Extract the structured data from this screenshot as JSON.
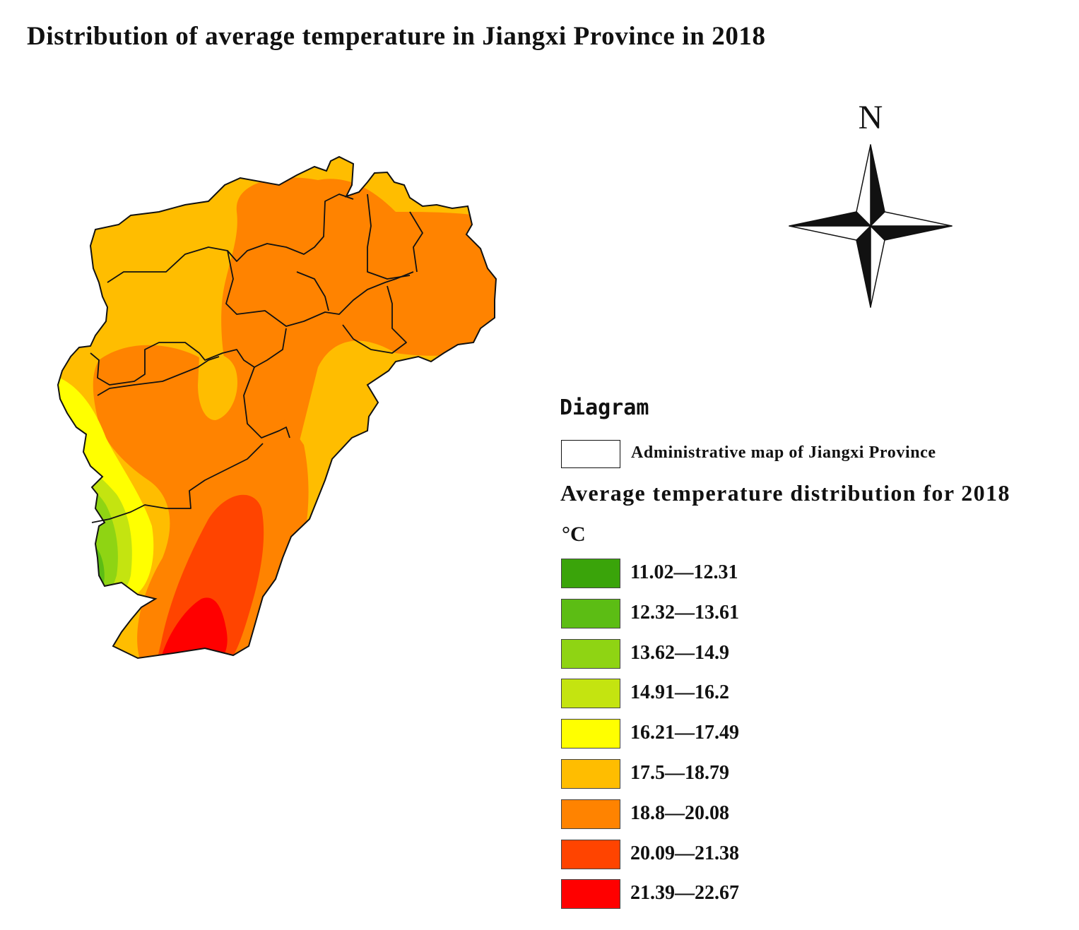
{
  "title": "Distribution of average temperature in Jiangxi Province in 2018",
  "compass": {
    "north_label": "N"
  },
  "legend": {
    "heading": "Diagram",
    "admin_map_label": "Administrative map of Jiangxi Province",
    "distribution_title": "Average temperature distribution for 2018",
    "unit": "°C",
    "classes": [
      {
        "range": "11.02—12.31",
        "color": "#3aa40a"
      },
      {
        "range": "12.32—13.61",
        "color": "#5cbd14"
      },
      {
        "range": "13.62—14.9",
        "color": "#8fd413"
      },
      {
        "range": "14.91—16.2",
        "color": "#c4e410"
      },
      {
        "range": "16.21—17.49",
        "color": "#ffff00"
      },
      {
        "range": "17.5—18.79",
        "color": "#ffbd00"
      },
      {
        "range": "18.8—20.08",
        "color": "#ff8300"
      },
      {
        "range": "20.09—21.38",
        "color": "#ff4400"
      },
      {
        "range": "21.39—22.67",
        "color": "#ff0000"
      }
    ]
  }
}
